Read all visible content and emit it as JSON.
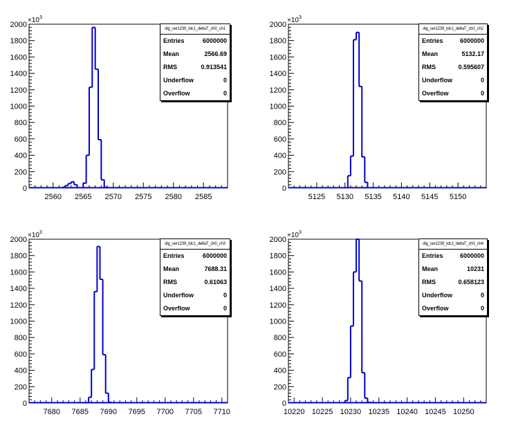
{
  "chart_data": [
    {
      "type": "bar",
      "title": "",
      "stats_title": "dig_ser1239_tdc1_deltaT_ch0_ch1",
      "stats": [
        {
          "label": "Entries",
          "value": "6000000"
        },
        {
          "label": "Mean",
          "value": "2566.69"
        },
        {
          "label": "RMS",
          "value": "0.913541"
        },
        {
          "label": "Underflow",
          "value": "0"
        },
        {
          "label": "Overflow",
          "value": "0"
        }
      ],
      "xlim": [
        2556,
        2589
      ],
      "ylim": [
        0,
        2000
      ],
      "y_multiplier": "×10",
      "y_multiplier_exp": "3",
      "x_ticks": [
        2560,
        2565,
        2570,
        2575,
        2580,
        2585
      ],
      "y_ticks": [
        0,
        200,
        400,
        600,
        800,
        1000,
        1200,
        1400,
        1600,
        1800,
        2000
      ],
      "bin_width": 0.5,
      "bins": [
        {
          "x": 2561.5,
          "y": 10
        },
        {
          "x": 2562,
          "y": 30
        },
        {
          "x": 2562.5,
          "y": 55
        },
        {
          "x": 2563,
          "y": 75
        },
        {
          "x": 2563.5,
          "y": 40
        },
        {
          "x": 2564,
          "y": 5
        },
        {
          "x": 2565,
          "y": 60
        },
        {
          "x": 2565.5,
          "y": 400
        },
        {
          "x": 2566,
          "y": 1230
        },
        {
          "x": 2566.5,
          "y": 1960
        },
        {
          "x": 2567,
          "y": 1450
        },
        {
          "x": 2567.5,
          "y": 590
        },
        {
          "x": 2568,
          "y": 100
        },
        {
          "x": 2568.5,
          "y": 10
        }
      ]
    },
    {
      "type": "bar",
      "title": "",
      "stats_title": "dig_ser1239_tdc1_deltaT_ch0_ch2",
      "stats": [
        {
          "label": "Entries",
          "value": "6000000"
        },
        {
          "label": "Mean",
          "value": "5132.17"
        },
        {
          "label": "RMS",
          "value": "0.595607"
        },
        {
          "label": "Underflow",
          "value": "0"
        },
        {
          "label": "Overflow",
          "value": "0"
        }
      ],
      "xlim": [
        5120,
        5155
      ],
      "ylim": [
        0,
        2000
      ],
      "y_multiplier": "×10",
      "y_multiplier_exp": "3",
      "x_ticks": [
        5125,
        5130,
        5135,
        5140,
        5145,
        5150
      ],
      "y_ticks": [
        0,
        200,
        400,
        600,
        800,
        1000,
        1200,
        1400,
        1600,
        1800,
        2000
      ],
      "bin_width": 0.5,
      "bins": [
        {
          "x": 5130.5,
          "y": 150
        },
        {
          "x": 5131,
          "y": 390
        },
        {
          "x": 5131.5,
          "y": 1810
        },
        {
          "x": 5132,
          "y": 1900
        },
        {
          "x": 5132.5,
          "y": 1240
        },
        {
          "x": 5133,
          "y": 380
        },
        {
          "x": 5133.5,
          "y": 70
        }
      ]
    },
    {
      "type": "bar",
      "title": "",
      "stats_title": "dig_ser1239_tdc1_deltaT_ch0_ch3",
      "stats": [
        {
          "label": "Entries",
          "value": "6000000"
        },
        {
          "label": "Mean",
          "value": "7688.31"
        },
        {
          "label": "RMS",
          "value": "0.61063"
        },
        {
          "label": "Underflow",
          "value": "0"
        },
        {
          "label": "Overflow",
          "value": "0"
        }
      ],
      "xlim": [
        7676,
        7711
      ],
      "ylim": [
        0,
        2000
      ],
      "y_multiplier": "×10",
      "y_multiplier_exp": "3",
      "x_ticks": [
        7680,
        7685,
        7690,
        7695,
        7700,
        7705,
        7710
      ],
      "y_ticks": [
        0,
        200,
        400,
        600,
        800,
        1000,
        1200,
        1400,
        1600,
        1800,
        2000
      ],
      "bin_width": 0.5,
      "bins": [
        {
          "x": 7686.5,
          "y": 70
        },
        {
          "x": 7687,
          "y": 410
        },
        {
          "x": 7687.5,
          "y": 1360
        },
        {
          "x": 7688,
          "y": 1910
        },
        {
          "x": 7688.5,
          "y": 1510
        },
        {
          "x": 7689,
          "y": 590
        },
        {
          "x": 7689.5,
          "y": 120
        },
        {
          "x": 7690,
          "y": 10
        }
      ]
    },
    {
      "type": "bar",
      "title": "",
      "stats_title": "dig_ser1239_tdc1_deltaT_ch0_ch4",
      "stats": [
        {
          "label": "Entries",
          "value": "6000000"
        },
        {
          "label": "Mean",
          "value": "10231"
        },
        {
          "label": "RMS",
          "value": "0.658123"
        },
        {
          "label": "Underflow",
          "value": "0"
        },
        {
          "label": "Overflow",
          "value": "0"
        }
      ],
      "xlim": [
        10219,
        10254
      ],
      "ylim": [
        0,
        2000
      ],
      "y_multiplier": "×10",
      "y_multiplier_exp": "3",
      "x_ticks": [
        10220,
        10225,
        10230,
        10235,
        10240,
        10245,
        10250
      ],
      "y_ticks": [
        0,
        200,
        400,
        600,
        800,
        1000,
        1200,
        1400,
        1600,
        1800,
        2000
      ],
      "bin_width": 0.5,
      "bins": [
        {
          "x": 10229,
          "y": 30
        },
        {
          "x": 10229.5,
          "y": 310
        },
        {
          "x": 10230,
          "y": 940
        },
        {
          "x": 10230.5,
          "y": 1600
        },
        {
          "x": 10231,
          "y": 2000
        },
        {
          "x": 10231.5,
          "y": 1490
        },
        {
          "x": 10232,
          "y": 370
        },
        {
          "x": 10232.5,
          "y": 60
        },
        {
          "x": 10233,
          "y": 10
        }
      ]
    }
  ]
}
